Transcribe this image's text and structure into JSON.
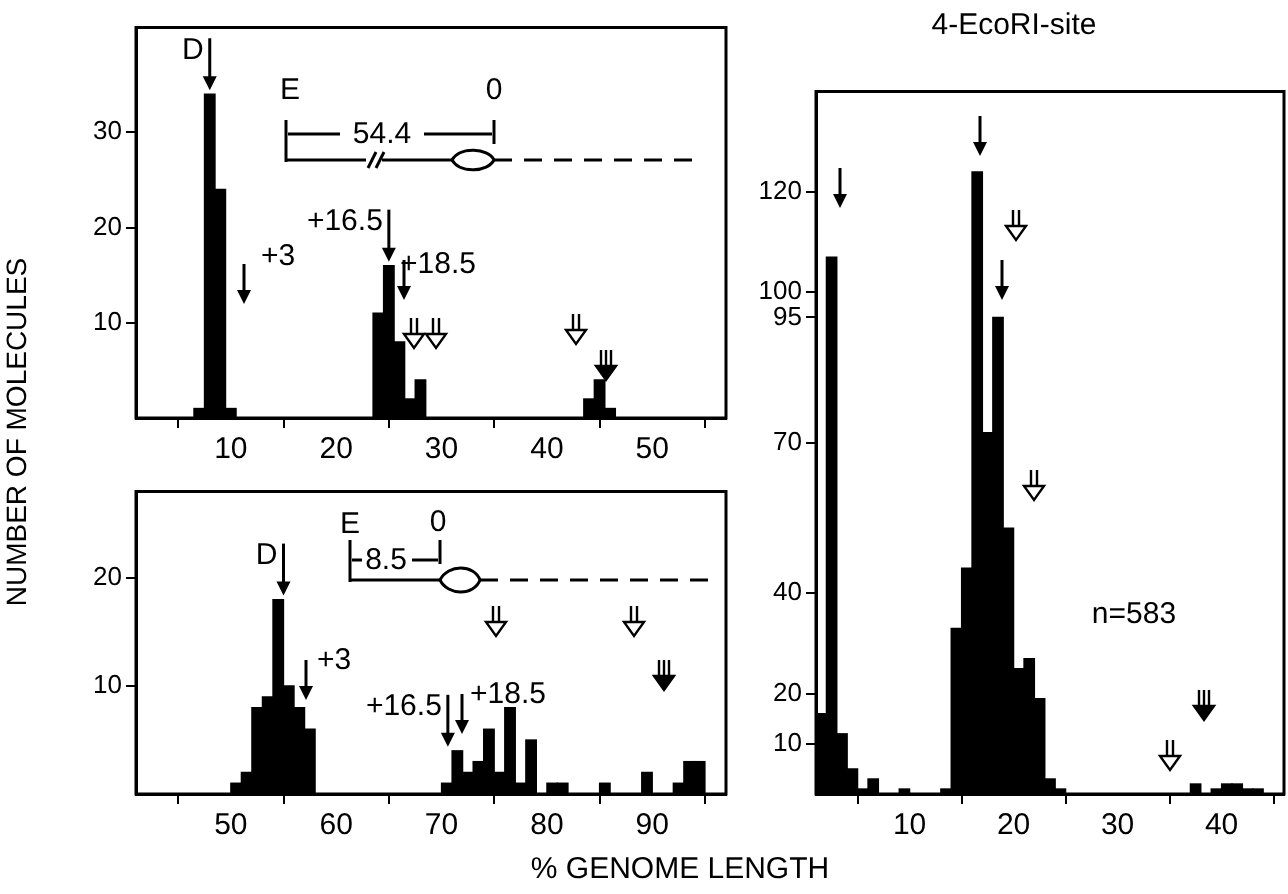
{
  "chart_data": [
    {
      "type": "histogram",
      "ylabel": "NUMBER OF MOLECULES",
      "color": "#000000",
      "bins": [
        6.5,
        7.5,
        8.5,
        9.5,
        10.5,
        11.5,
        12.5,
        13.5,
        14.5,
        15.5,
        16.5,
        17.5,
        18.5,
        19.5,
        20.5,
        21.5,
        22.5,
        23.5,
        24.5,
        25.5,
        26.5,
        27.5,
        28.5,
        29.5,
        30.5,
        31.5,
        32.5,
        33.5,
        34.5,
        35.5,
        36.5,
        37.5,
        38.5,
        39.5,
        40.5,
        41.5,
        42.5,
        43.5,
        44.5,
        45.5,
        46.5
      ],
      "values": [
        1,
        34,
        24,
        1,
        0,
        0,
        0,
        0,
        0,
        0,
        0,
        0,
        0,
        0,
        0,
        0,
        0,
        11,
        16,
        8,
        2,
        4,
        0,
        0,
        0,
        0,
        0,
        0,
        0,
        0,
        0,
        0,
        0,
        0,
        0,
        0,
        0,
        2,
        4,
        1
      ],
      "xlim": [
        1,
        57
      ],
      "xticks": [
        10,
        20,
        30,
        40,
        50
      ],
      "ylim": [
        0,
        41
      ],
      "yticks": [
        10,
        20,
        30
      ],
      "grid": false,
      "legend": false,
      "annotations": [
        {
          "text": "D",
          "x": 8,
          "y": 34
        },
        {
          "text": "+16.5",
          "x": 25,
          "y": 16
        },
        "+3",
        "+18.5",
        "E",
        "54.4",
        "0"
      ]
    },
    {
      "type": "histogram",
      "xlabel": "% GENOME LENGTH",
      "color": "#000000",
      "bins": [
        50,
        51,
        52,
        53,
        54,
        55,
        56,
        57,
        58,
        59,
        60,
        61,
        62,
        63,
        64,
        65,
        66,
        67,
        68,
        69,
        70,
        71,
        72,
        73,
        74,
        75,
        76,
        77,
        78,
        79,
        80,
        81,
        82,
        83,
        84,
        85,
        86,
        87,
        88,
        89,
        90,
        91,
        92,
        93,
        94,
        95
      ],
      "values": [
        1,
        2,
        8,
        9,
        18,
        10,
        8,
        6,
        0,
        0,
        0,
        0,
        0,
        0,
        0,
        0,
        0,
        0,
        0,
        0,
        1,
        4,
        2,
        3,
        6,
        2,
        8,
        1,
        5,
        0,
        1,
        1,
        0,
        0,
        0,
        1,
        0,
        0,
        0,
        2,
        0,
        0,
        1,
        3,
        3
      ],
      "xlim": [
        41,
        97
      ],
      "xticks": [
        50,
        60,
        70,
        80,
        90
      ],
      "ylim": [
        0,
        28
      ],
      "yticks": [
        10,
        20
      ],
      "grid": false,
      "legend": false,
      "annotations": [
        {
          "text": "D",
          "x": 55,
          "y": 18
        },
        {
          "text": "+16.5",
          "x": 70.6,
          "y": 4
        },
        "+3",
        "+18.5",
        "E",
        "8.5",
        "0"
      ]
    },
    {
      "type": "histogram",
      "title": "4-EcoRI-site",
      "color": "#000000",
      "bins": [
        1,
        2,
        3,
        4,
        5,
        6,
        7,
        8,
        9,
        10,
        11,
        12,
        13,
        14,
        15,
        16,
        17,
        18,
        19,
        20,
        21,
        22,
        23,
        24,
        25,
        26,
        27,
        28,
        29,
        30,
        31,
        32,
        33,
        34,
        35,
        36,
        37,
        38,
        39,
        40,
        41,
        42,
        43,
        44
      ],
      "values": [
        16,
        107,
        12,
        5,
        1,
        3,
        0,
        0,
        1,
        0,
        0,
        0,
        1,
        33,
        45,
        124,
        72,
        95,
        53,
        25,
        27,
        19,
        3,
        1,
        0,
        0,
        0,
        0,
        0,
        0,
        0,
        0,
        0,
        0,
        0,
        0,
        2,
        0,
        1,
        2,
        2,
        1,
        1
      ],
      "xlim": [
        1,
        46
      ],
      "xticks": [
        10,
        20,
        30,
        40
      ],
      "ylim": [
        0,
        140
      ],
      "yticks": [
        10,
        20,
        40,
        70,
        95,
        100,
        120
      ],
      "grid": false,
      "legend": false,
      "annotations": [
        "n=583"
      ]
    }
  ]
}
